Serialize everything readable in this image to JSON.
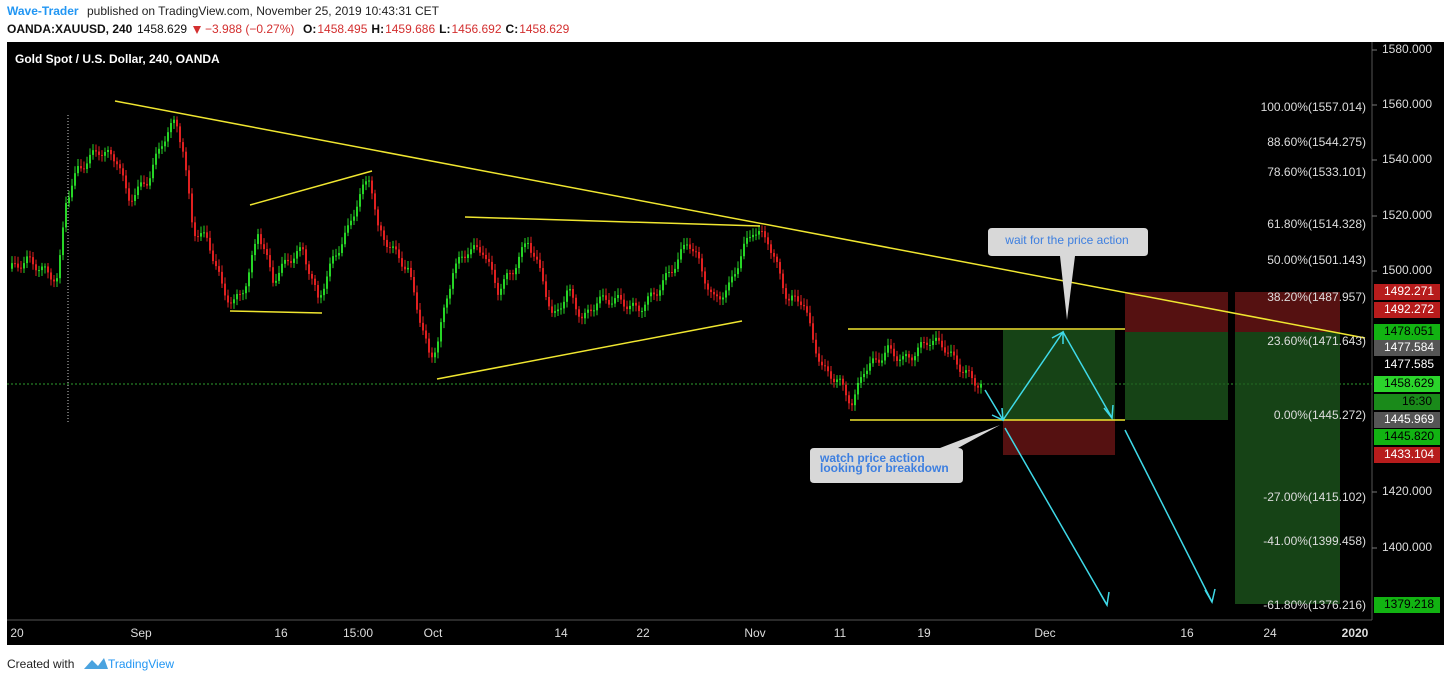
{
  "header": {
    "author": "Wave-Trader",
    "published": "published on TradingView.com, November 25, 2019 10:43:31 CET",
    "symbol": "OANDA:XAUUSD, 240",
    "last": "1458.629",
    "change": "−3.988 (−0.27%)",
    "ohlc": [
      {
        "label": "O:",
        "value": "1458.495"
      },
      {
        "label": "H:",
        "value": "1459.686"
      },
      {
        "label": "L:",
        "value": "1456.692"
      },
      {
        "label": "C:",
        "value": "1458.629"
      }
    ]
  },
  "chart_title": "Gold Spot / U.S. Dollar, 240, OANDA",
  "price_axis": [
    "1580.000",
    "1560.000",
    "1540.000",
    "1520.000",
    "1500.000",
    "1420.000",
    "1400.000"
  ],
  "time_axis": [
    "20",
    "Sep",
    "16",
    "15:00",
    "Oct",
    "14",
    "22",
    "Nov",
    "11",
    "19",
    "Dec",
    "16",
    "24",
    "2020"
  ],
  "fib_levels": [
    "100.00%(1557.014)",
    "88.60%(1544.275)",
    "78.60%(1533.101)",
    "61.80%(1514.328)",
    "50.00%(1501.143)",
    "38.20%(1487.957)",
    "23.60%(1471.643)",
    "0.00%(1445.272)",
    "-27.00%(1415.102)",
    "-41.00%(1399.458)",
    "-61.80%(1376.216)"
  ],
  "price_tags": [
    "1492.271",
    "1492.272",
    "1478.051",
    "1477.584",
    "1477.585",
    "1458.629",
    "16:30",
    "1445.969",
    "1445.820",
    "1433.104",
    "1379.218"
  ],
  "annotations": {
    "top": "wait for the price action",
    "bottom": [
      "watch price action",
      "looking for breakdown"
    ]
  },
  "footer": {
    "text": "Created with",
    "brand": "TradingView"
  }
}
